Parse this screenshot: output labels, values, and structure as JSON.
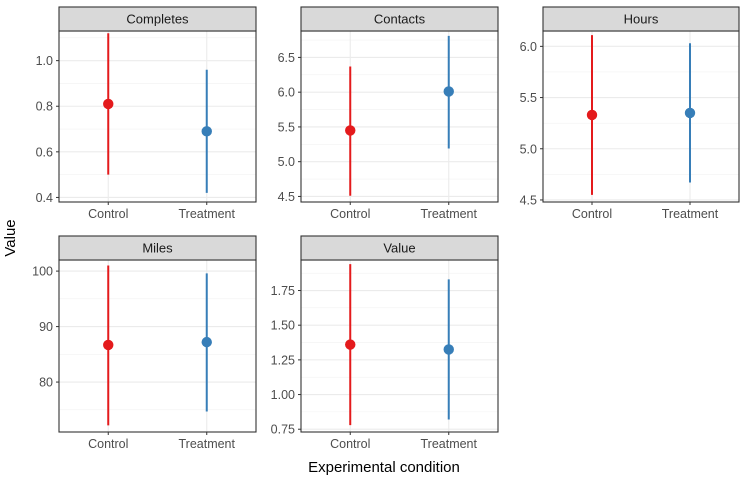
{
  "chart_data": {
    "type": "point-range",
    "xlabel": "Experimental condition",
    "ylabel": "Value",
    "categories": [
      "Control",
      "Treatment"
    ],
    "colors": {
      "Control": "#E41A1C",
      "Treatment": "#377EB8"
    },
    "grid": true,
    "legend": "none",
    "panels": [
      {
        "name": "Completes",
        "ylim": [
          0.38,
          1.13
        ],
        "yticks": [
          0.4,
          0.6,
          0.8,
          1.0
        ],
        "ytick_labels": [
          "0.4",
          "0.6",
          "0.8",
          "1.0"
        ],
        "points": [
          {
            "x": "Control",
            "y": 0.81,
            "ymin": 0.5,
            "ymax": 1.12
          },
          {
            "x": "Treatment",
            "y": 0.69,
            "ymin": 0.42,
            "ymax": 0.96
          }
        ]
      },
      {
        "name": "Contacts",
        "ylim": [
          4.42,
          6.88
        ],
        "yticks": [
          4.5,
          5.0,
          5.5,
          6.0,
          6.5
        ],
        "ytick_labels": [
          "4.5",
          "5.0",
          "5.5",
          "6.0",
          "6.5"
        ],
        "points": [
          {
            "x": "Control",
            "y": 5.45,
            "ymin": 4.51,
            "ymax": 6.37
          },
          {
            "x": "Treatment",
            "y": 6.01,
            "ymin": 5.19,
            "ymax": 6.81
          }
        ]
      },
      {
        "name": "Hours",
        "ylim": [
          4.48,
          6.15
        ],
        "yticks": [
          4.5,
          5.0,
          5.5,
          6.0
        ],
        "ytick_labels": [
          "4.5",
          "5.0",
          "5.5",
          "6.0"
        ],
        "points": [
          {
            "x": "Control",
            "y": 5.33,
            "ymin": 4.55,
            "ymax": 6.11
          },
          {
            "x": "Treatment",
            "y": 5.35,
            "ymin": 4.67,
            "ymax": 6.03
          }
        ]
      },
      {
        "name": "Miles",
        "ylim": [
          71.0,
          102.0
        ],
        "yticks": [
          80,
          90,
          100
        ],
        "ytick_labels": [
          "80",
          "90",
          "100"
        ],
        "points": [
          {
            "x": "Control",
            "y": 86.7,
            "ymin": 72.2,
            "ymax": 101.0
          },
          {
            "x": "Treatment",
            "y": 87.2,
            "ymin": 74.7,
            "ymax": 99.6
          }
        ]
      },
      {
        "name": "Value",
        "ylim": [
          0.73,
          1.97
        ],
        "yticks": [
          0.75,
          1.0,
          1.25,
          1.5,
          1.75
        ],
        "ytick_labels": [
          "0.75",
          "1.00",
          "1.25",
          "1.50",
          "1.75"
        ],
        "points": [
          {
            "x": "Control",
            "y": 1.36,
            "ymin": 0.78,
            "ymax": 1.94
          },
          {
            "x": "Treatment",
            "y": 1.325,
            "ymin": 0.82,
            "ymax": 1.83
          }
        ]
      }
    ]
  }
}
